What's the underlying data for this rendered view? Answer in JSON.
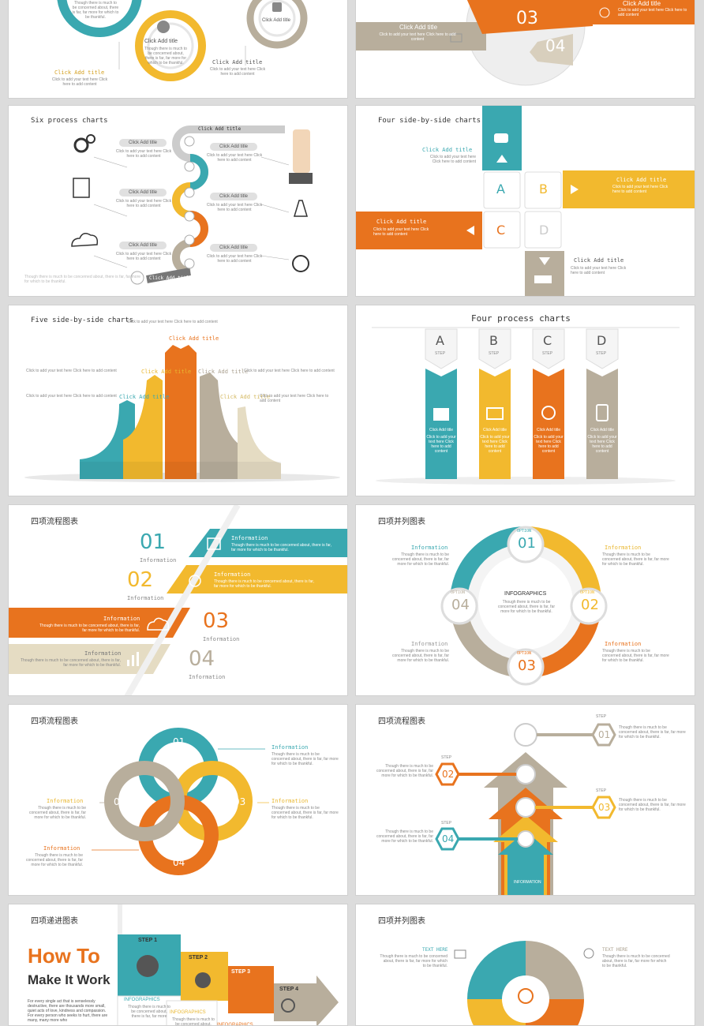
{
  "colors": {
    "teal": "#3aa8b0",
    "orange": "#e8731e",
    "yellow": "#f2b92e",
    "grey": "#b8ae9c"
  },
  "s1": {
    "a": "Click Add title",
    "b": "Click Add title",
    "c": "Click Add title",
    "d": "Click Add title",
    "desc": "Though there is much to be concerned about, there is far, far more for which to be thankful.",
    "txt": "Click to add your text here Click here to add content"
  },
  "s2": {
    "a": "Click Add title",
    "b": "Click Add title",
    "txt": "Click to add your text here Click here to add content",
    "n3": "03",
    "n4": "04"
  },
  "s3": {
    "title": "Six process charts",
    "ptitle": "Click Add title",
    "ptxt": "Click to add your text here Click here to add content",
    "top": "Click Add title",
    "bottom": "Click Add title",
    "foot": "Though there is much to be concerned about, there is far, far more for which to be thankful."
  },
  "s4": {
    "title": "Four side-by-side charts",
    "t1": "Click Add title",
    "t2": "Click Add title",
    "t3": "Click Add title",
    "t4": "Click Add title",
    "txt": "Click to add your text here Click here to add content",
    "A": "A",
    "B": "B",
    "C": "C",
    "D": "D"
  },
  "s5": {
    "title": "Five side-by-side charts",
    "ct": "Click Add title",
    "txt": "Click to add your text here Click here to add content",
    "txt2": "Click to add your text here Click here to add content"
  },
  "s6": {
    "title": "Four process charts",
    "letters": [
      "A",
      "B",
      "C",
      "D"
    ],
    "step": "STEP",
    "ct": "Click Add title",
    "txt": "Click to add your text here Click here to add content"
  },
  "s7": {
    "title": "四项流程图表",
    "nums": [
      "01",
      "02",
      "03",
      "04"
    ],
    "info": "Information",
    "desc": "Though there is much to be concerned about, there is far, far more for which to be thankful."
  },
  "s8": {
    "title": "四项并列图表",
    "center": "INFOGRAPHICS",
    "cdesc": "Though there is much to be concerned about, there is far, far more for which to be thankful.",
    "option": "OPTION",
    "nums": [
      "01",
      "02",
      "03",
      "04"
    ],
    "info": "Information",
    "desc": "Though there is much to be concerned about, there is far, far more for which to be thankful."
  },
  "s9": {
    "title": "四项流程图表",
    "nums": [
      "01",
      "02",
      "03",
      "04"
    ],
    "step": "STEP",
    "info": "Information",
    "desc": "Though there is much to be concerned about, there is far, far more for which to be thankful."
  },
  "s10": {
    "title": "四项流程图表",
    "step": "STEP",
    "nums": [
      "01",
      "02",
      "03",
      "04"
    ],
    "desc": "Though there is much to be concerned about, there is far, far more for which to be thankful.",
    "inf": "INFORMATION"
  },
  "s11": {
    "title": "四项递进图表",
    "h1": "How To",
    "h2": "Make It Work",
    "body": "For every single act that is senselessly destructive, there are thousands more small, quiet acts of love, kindness and compassion. For every person who seeks to hurt, there are many, many more who",
    "steps": [
      "STEP 1",
      "STEP 2",
      "STEP 3",
      "STEP 4"
    ],
    "infog": "INFOGRAPHICS",
    "idesc": "Though there is much to be concerned about, there is far, far more"
  },
  "s12": {
    "title": "四项并列图表",
    "th": "TEXT HERE",
    "desc": "Though there is much to be concerned about, there is far, far more for which to be thankful."
  }
}
